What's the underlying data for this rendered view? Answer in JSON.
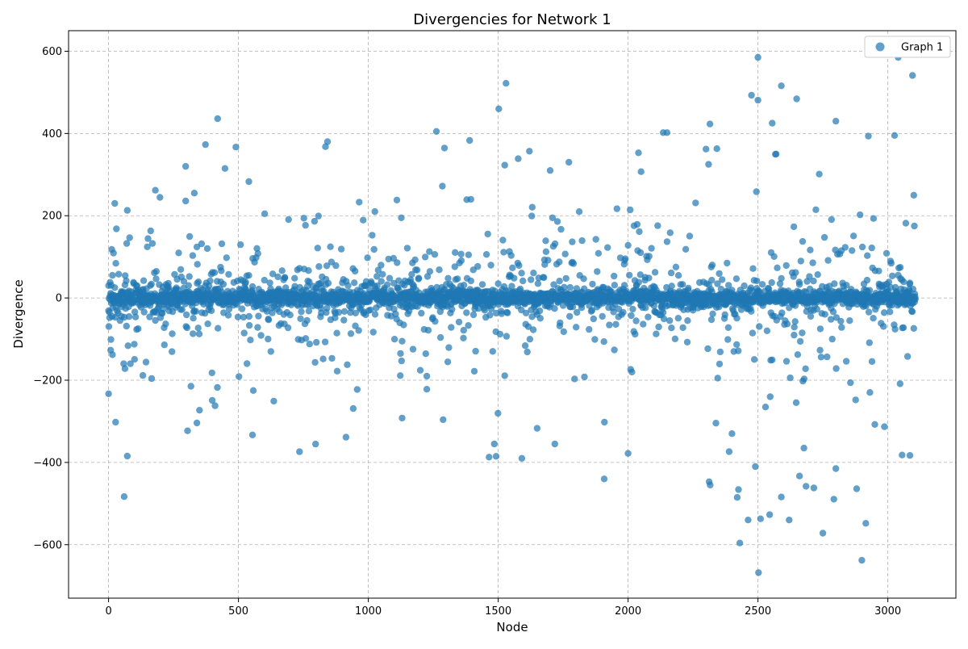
{
  "chart_data": {
    "type": "scatter",
    "title": "Divergencies for Network 1",
    "xlabel": "Node",
    "ylabel": "Divergence",
    "xlim": [
      -154,
      3262
    ],
    "ylim": [
      -730,
      650
    ],
    "x_ticks": [
      0,
      500,
      1000,
      1500,
      2000,
      2500,
      3000
    ],
    "y_ticks": [
      -600,
      -400,
      -200,
      0,
      200,
      400,
      600
    ],
    "x_tick_labels": [
      "0",
      "500",
      "1000",
      "1500",
      "2000",
      "2500",
      "3000"
    ],
    "y_tick_labels": [
      "−600",
      "−400",
      "−200",
      "0",
      "200",
      "400",
      "600"
    ],
    "grid": true,
    "legend_position": "top-right",
    "series": [
      {
        "name": "Graph 1",
        "color": "#1f77b4",
        "n_points": 3107,
        "sampling_note": "dense cloud; values concentrated near 0 with outliers",
        "highlight_points": [
          [
            0,
            30
          ],
          [
            0,
            -233
          ],
          [
            8,
            -127
          ],
          [
            12,
            118
          ],
          [
            15,
            -138
          ],
          [
            24,
            230
          ],
          [
            30,
            168
          ],
          [
            58,
            -160
          ],
          [
            60,
            -483
          ],
          [
            63,
            -172
          ],
          [
            72,
            213
          ],
          [
            84,
            -160
          ],
          [
            180,
            262
          ],
          [
            297,
            320
          ],
          [
            304,
            -323
          ],
          [
            330,
            255
          ],
          [
            340,
            -304
          ],
          [
            350,
            -273
          ],
          [
            373,
            373
          ],
          [
            420,
            436
          ],
          [
            410,
            -262
          ],
          [
            490,
            367
          ],
          [
            448,
            315
          ],
          [
            540,
            283
          ],
          [
            554,
            -333
          ],
          [
            735,
            -374
          ],
          [
            835,
            368
          ],
          [
            843,
            380
          ],
          [
            965,
            233
          ],
          [
            1025,
            210
          ],
          [
            1127,
            195
          ],
          [
            1130,
            -292
          ],
          [
            1225,
            -222
          ],
          [
            1262,
            405
          ],
          [
            1285,
            272
          ],
          [
            1288,
            -296
          ],
          [
            1390,
            383
          ],
          [
            1395,
            240
          ],
          [
            1465,
            -387
          ],
          [
            1485,
            -355
          ],
          [
            1492,
            -385
          ],
          [
            1502,
            460
          ],
          [
            1525,
            323
          ],
          [
            1530,
            522
          ],
          [
            1591,
            -390
          ],
          [
            1620,
            357
          ],
          [
            1650,
            -317
          ],
          [
            1700,
            310
          ],
          [
            1718,
            -355
          ],
          [
            1908,
            -440
          ],
          [
            2000,
            -378
          ],
          [
            2040,
            353
          ],
          [
            2050,
            307
          ],
          [
            2135,
            402
          ],
          [
            2150,
            402
          ],
          [
            2315,
            423
          ],
          [
            2300,
            362
          ],
          [
            2310,
            325
          ],
          [
            2312,
            -447
          ],
          [
            2316,
            -455
          ],
          [
            2342,
            363
          ],
          [
            2400,
            -330
          ],
          [
            2420,
            -485
          ],
          [
            2425,
            -466
          ],
          [
            2430,
            -596
          ],
          [
            2462,
            -540
          ],
          [
            2475,
            493
          ],
          [
            2490,
            -410
          ],
          [
            2500,
            585
          ],
          [
            2500,
            481
          ],
          [
            2502,
            -668
          ],
          [
            2510,
            -537
          ],
          [
            2545,
            -527
          ],
          [
            2555,
            425
          ],
          [
            2570,
            350
          ],
          [
            2590,
            516
          ],
          [
            2590,
            -484
          ],
          [
            2620,
            -540
          ],
          [
            2660,
            -433
          ],
          [
            2685,
            -458
          ],
          [
            2715,
            -462
          ],
          [
            2750,
            -572
          ],
          [
            2800,
            430
          ],
          [
            2800,
            -415
          ],
          [
            2880,
            -464
          ],
          [
            2900,
            -638
          ],
          [
            2915,
            -548
          ],
          [
            3040,
            585
          ],
          [
            3055,
            -382
          ],
          [
            3085,
            -383
          ],
          [
            3095,
            541
          ],
          [
            3100,
            250
          ],
          [
            3102,
            175
          ]
        ]
      }
    ]
  }
}
